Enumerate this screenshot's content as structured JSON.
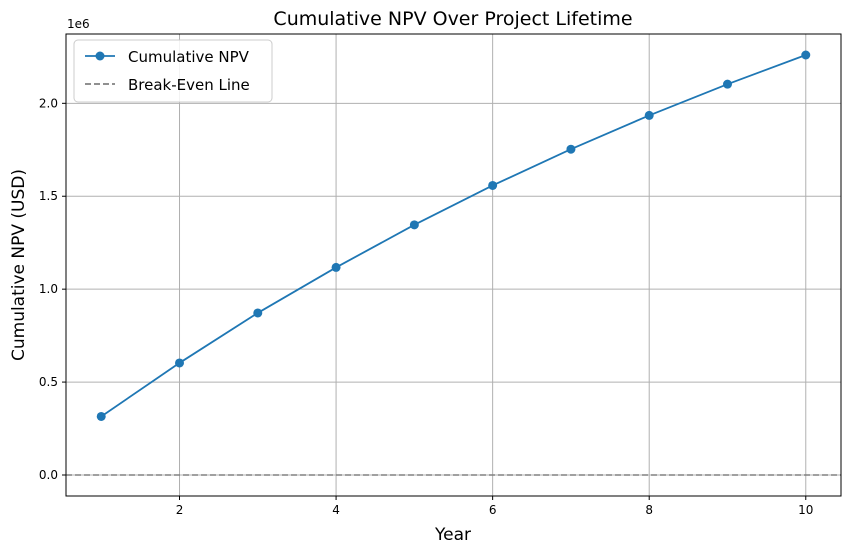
{
  "chart_data": {
    "type": "line",
    "title": "Cumulative NPV Over Project Lifetime",
    "xlabel": "Year",
    "ylabel": "Cumulative NPV (USD)",
    "y_offset_label": "1e6",
    "xlim": [
      0.55,
      10.45
    ],
    "ylim": [
      -113000,
      2373000
    ],
    "xticks": [
      2,
      4,
      6,
      8,
      10
    ],
    "xtick_labels": [
      "2",
      "4",
      "6",
      "8",
      "10"
    ],
    "yticks": [
      0,
      500000,
      1000000,
      1500000,
      2000000
    ],
    "ytick_labels": [
      "0.0",
      "0.5",
      "1.0",
      "1.5",
      "2.0"
    ],
    "grid": true,
    "legend_position": "upper-left",
    "series": [
      {
        "name": "Cumulative NPV",
        "style": "solid line with circle markers",
        "color": "#1f77b4",
        "x": [
          1,
          2,
          3,
          4,
          5,
          6,
          7,
          8,
          9,
          10
        ],
        "values": [
          315000,
          603000,
          872000,
          1117000,
          1346000,
          1558000,
          1753000,
          1935000,
          2103000,
          2260000
        ]
      }
    ],
    "reference_lines": [
      {
        "name": "Break-Even Line",
        "y": 0,
        "style": "dashed",
        "color": "#808080"
      }
    ]
  }
}
